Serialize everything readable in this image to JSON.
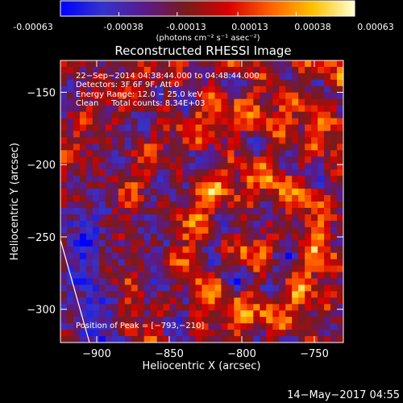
{
  "colorbar": {
    "tick_labels": [
      "-0.00063",
      "-0.00038",
      "-0.00013",
      "0.00013",
      "0.00038",
      "0.00063"
    ],
    "tick_values": [
      -0.00063,
      -0.00038,
      -0.00013,
      0.00013,
      0.00038,
      0.00063
    ],
    "range": [
      -0.00063,
      0.00063
    ],
    "unit_label": "(photons cm⁻² s⁻¹ asec⁻²)",
    "colormap": [
      "#0000ff",
      "#3333cc",
      "#5a1a8a",
      "#7a1a1a",
      "#d80000",
      "#ff6000",
      "#ffc000",
      "#ffffd0"
    ]
  },
  "chart_data": {
    "type": "heatmap",
    "title": "Reconstructed RHESSI Image",
    "xlabel": "Heliocentric X (arcsec)",
    "ylabel": "Heliocentric Y (arcsec)",
    "xlim": [
      -925,
      -730
    ],
    "ylim": [
      -323,
      -128
    ],
    "x_ticks": [
      -900,
      -850,
      -800,
      -750
    ],
    "x_tick_labels": [
      "−900",
      "−850",
      "−800",
      "−750"
    ],
    "y_ticks": [
      -150,
      -200,
      -250,
      -300
    ],
    "y_tick_labels": [
      "−150",
      "−200",
      "−250",
      "−300"
    ],
    "grid": false,
    "annotations": [
      "22−Sep−2014 04:38:44.000 to 04:48:44.000",
      "Detectors: 3F 6F 9F, Att 0",
      "Energy Range: 12.0 − 25.0 keV",
      "Clean     Total counts: 8.34E+03"
    ],
    "peak_label": "Position of Peak = [−793,−210]",
    "peak": [
      -793,
      -210
    ],
    "limb_points": [
      [
        -925,
        -252
      ],
      [
        -905,
        -323
      ]
    ]
  },
  "footer": {
    "timestamp": "14−May−2017 04:55"
  }
}
